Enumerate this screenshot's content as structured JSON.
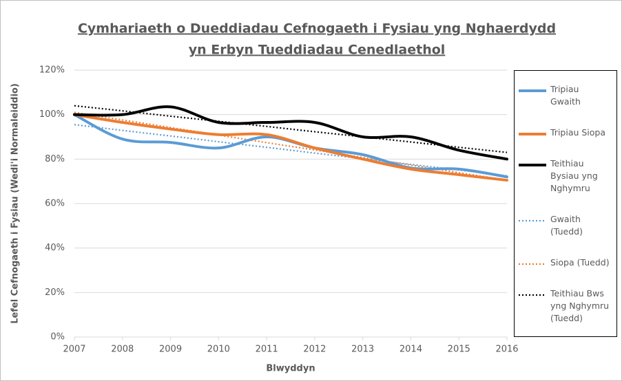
{
  "chart_data": {
    "type": "line",
    "title": "Cymhariaeth o Dueddiadau Cefnogaeth i Fysiau yng Nghaerdydd",
    "subtitle": "yn Erbyn Tueddiadau Cenedlaethol",
    "xlabel": "Blwyddyn",
    "ylabel": "Lefel Cefnogaeth i Fysiau (Wedi'i Normaleiddio)",
    "x": [
      2007,
      2008,
      2009,
      2010,
      2011,
      2012,
      2013,
      2014,
      2015,
      2016
    ],
    "xlim": [
      2007,
      2016
    ],
    "xticks": [
      2007,
      2008,
      2009,
      2010,
      2011,
      2012,
      2013,
      2014,
      2015,
      2016
    ],
    "ylim": [
      0,
      120
    ],
    "yticks": [
      {
        "value": 0,
        "label": "0%"
      },
      {
        "value": 20,
        "label": "20%"
      },
      {
        "value": 40,
        "label": "40%"
      },
      {
        "value": 60,
        "label": "60%"
      },
      {
        "value": 80,
        "label": "80%"
      },
      {
        "value": 100,
        "label": "100%"
      },
      {
        "value": 120,
        "label": "120%"
      }
    ],
    "grid": true,
    "legend": "right",
    "series": [
      {
        "name": "Tripiau Gwaith",
        "color": "#5b9bd5",
        "style": "solid",
        "smooth": true,
        "values": [
          100,
          89,
          87.5,
          85,
          90,
          85,
          82,
          76,
          75.5,
          72
        ]
      },
      {
        "name": "Tripiau Siopa",
        "color": "#ed7d31",
        "style": "solid",
        "smooth": true,
        "values": [
          100,
          96.5,
          93.5,
          91,
          91,
          85,
          80,
          75.5,
          73,
          70.5
        ]
      },
      {
        "name": "Teithiau Bysiau yng Nghymru",
        "color": "#000000",
        "style": "solid",
        "smooth": true,
        "values": [
          100,
          100,
          103.5,
          96.5,
          96.5,
          96.5,
          90,
          90,
          84,
          80
        ]
      },
      {
        "name": "Gwaith (Tuedd)",
        "color": "#5b9bd5",
        "style": "dotted",
        "smooth": false,
        "values": [
          95.5,
          92.9,
          90.4,
          87.8,
          85.3,
          82.7,
          80.2,
          77.6,
          75.1,
          72.5
        ]
      },
      {
        "name": "Siopa (Tuedd)",
        "color": "#ed7d31",
        "style": "dotted",
        "smooth": false,
        "values": [
          101,
          97.6,
          94.2,
          90.8,
          87.4,
          84.1,
          80.7,
          77.3,
          73.9,
          70.5
        ]
      },
      {
        "name": "Teithiau Bws yng Nghymru (Tuedd)",
        "color": "#000000",
        "style": "dotted",
        "smooth": false,
        "values": [
          104,
          101.7,
          99.3,
          97,
          94.7,
          92.3,
          90,
          87.7,
          85.3,
          83
        ]
      }
    ]
  }
}
